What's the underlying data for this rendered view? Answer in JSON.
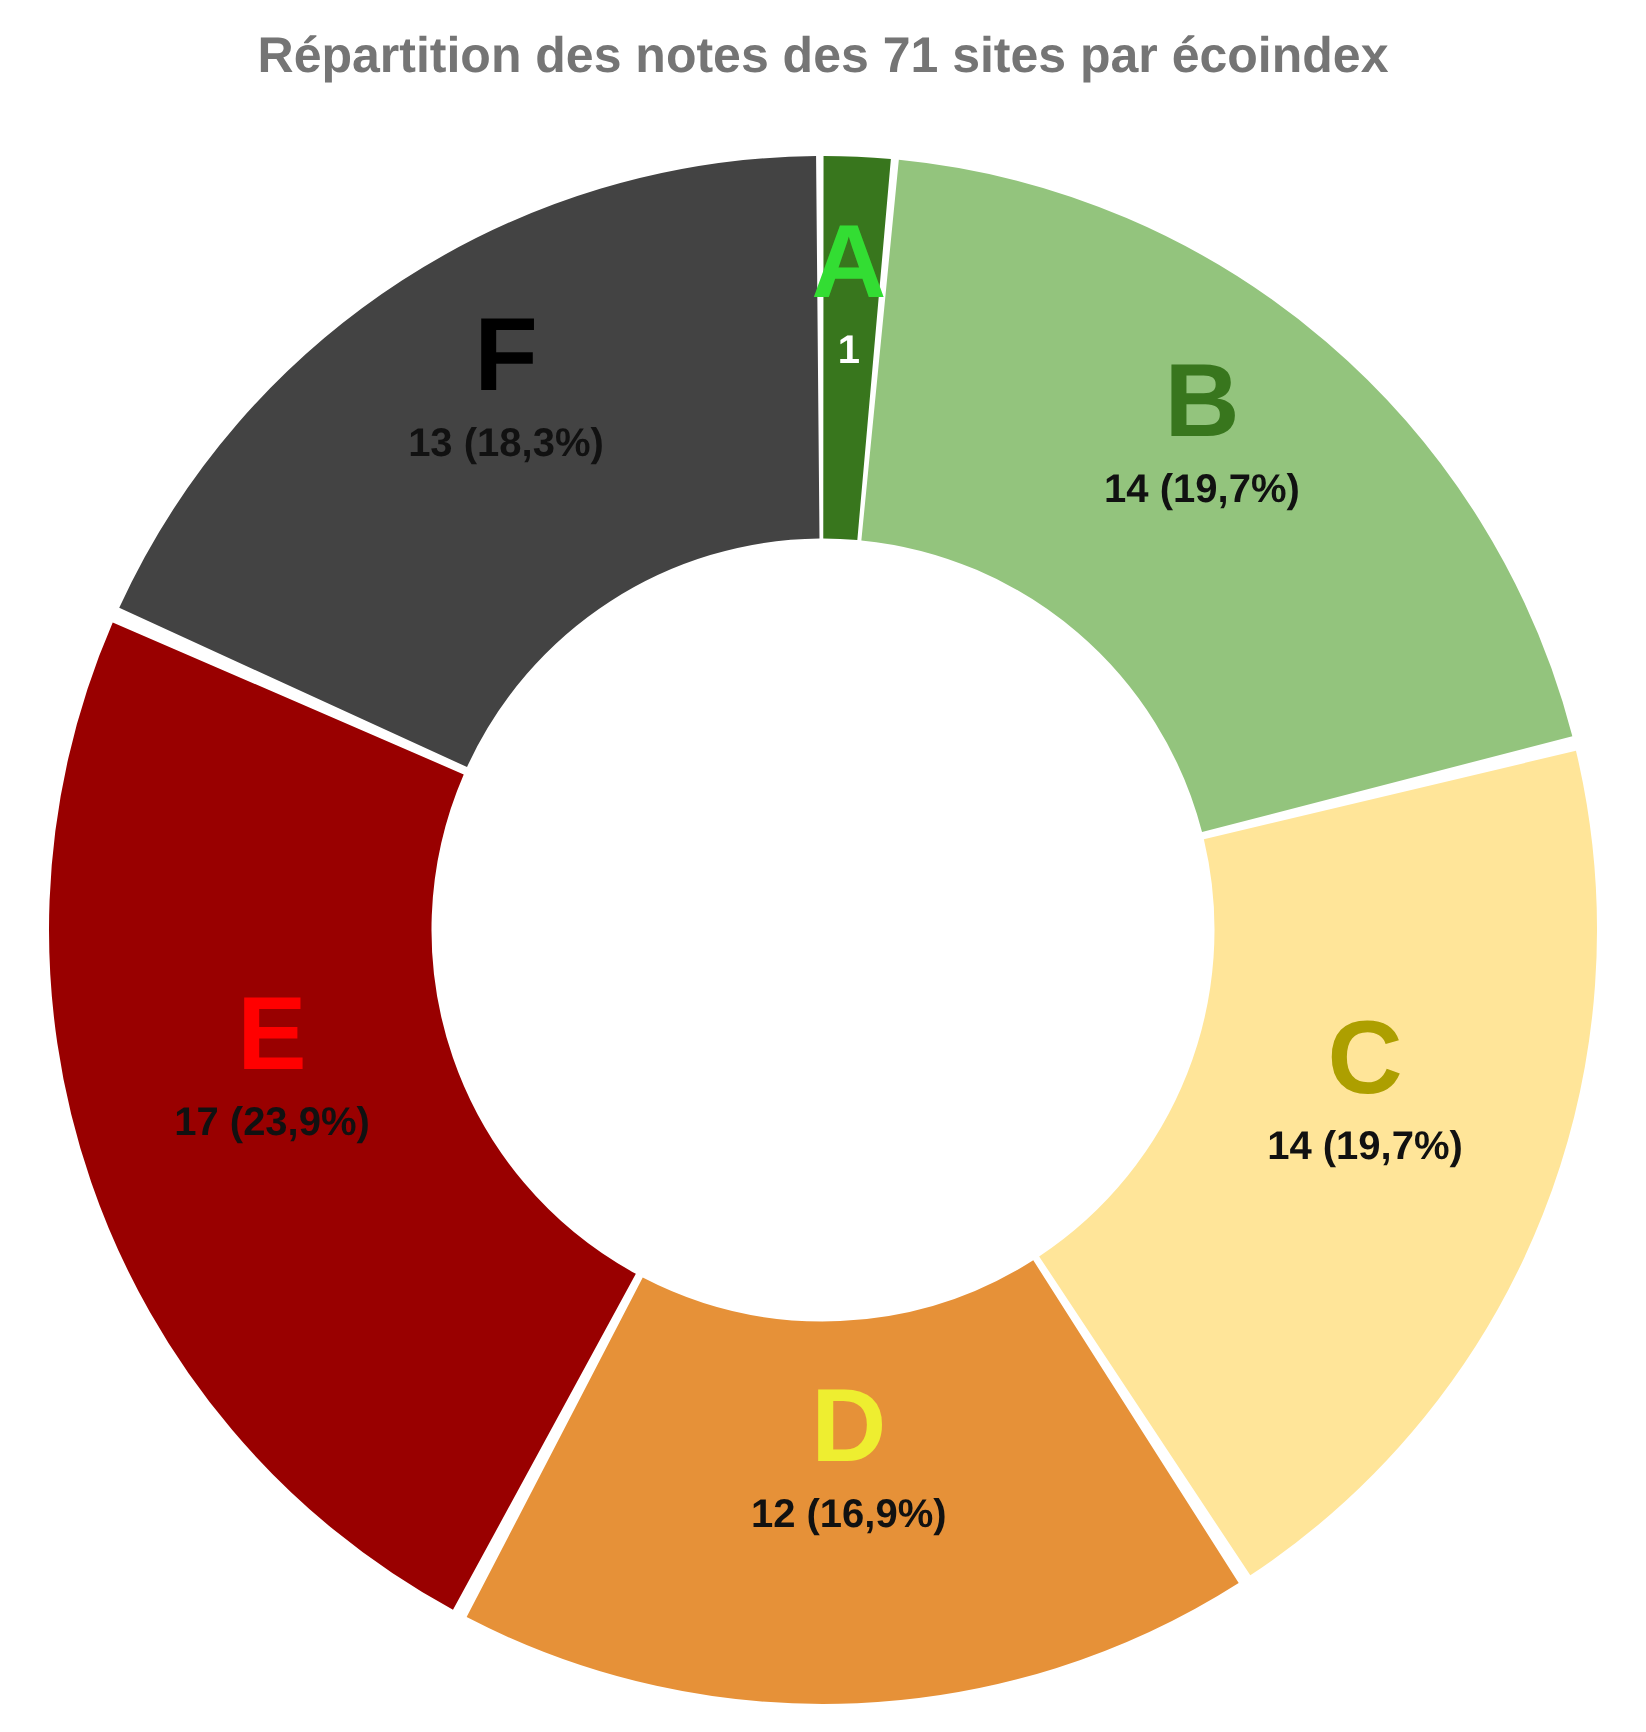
{
  "chart_data": {
    "type": "donut",
    "title": "Répartition des notes des 71 sites par écoindex",
    "categories": [
      "A",
      "B",
      "C",
      "D",
      "E",
      "F"
    ],
    "values": [
      1,
      14,
      14,
      12,
      17,
      13
    ],
    "colors": [
      "#38761d",
      "#93c47d",
      "#ffe599",
      "#e69138",
      "#990000",
      "#434343"
    ],
    "value_labels": [
      "1",
      "14 (19,7%)",
      "14 (19,7%)",
      "12 (16,9%)",
      "17 (23,9%)",
      "13 (18,3%)"
    ],
    "legend": false
  }
}
